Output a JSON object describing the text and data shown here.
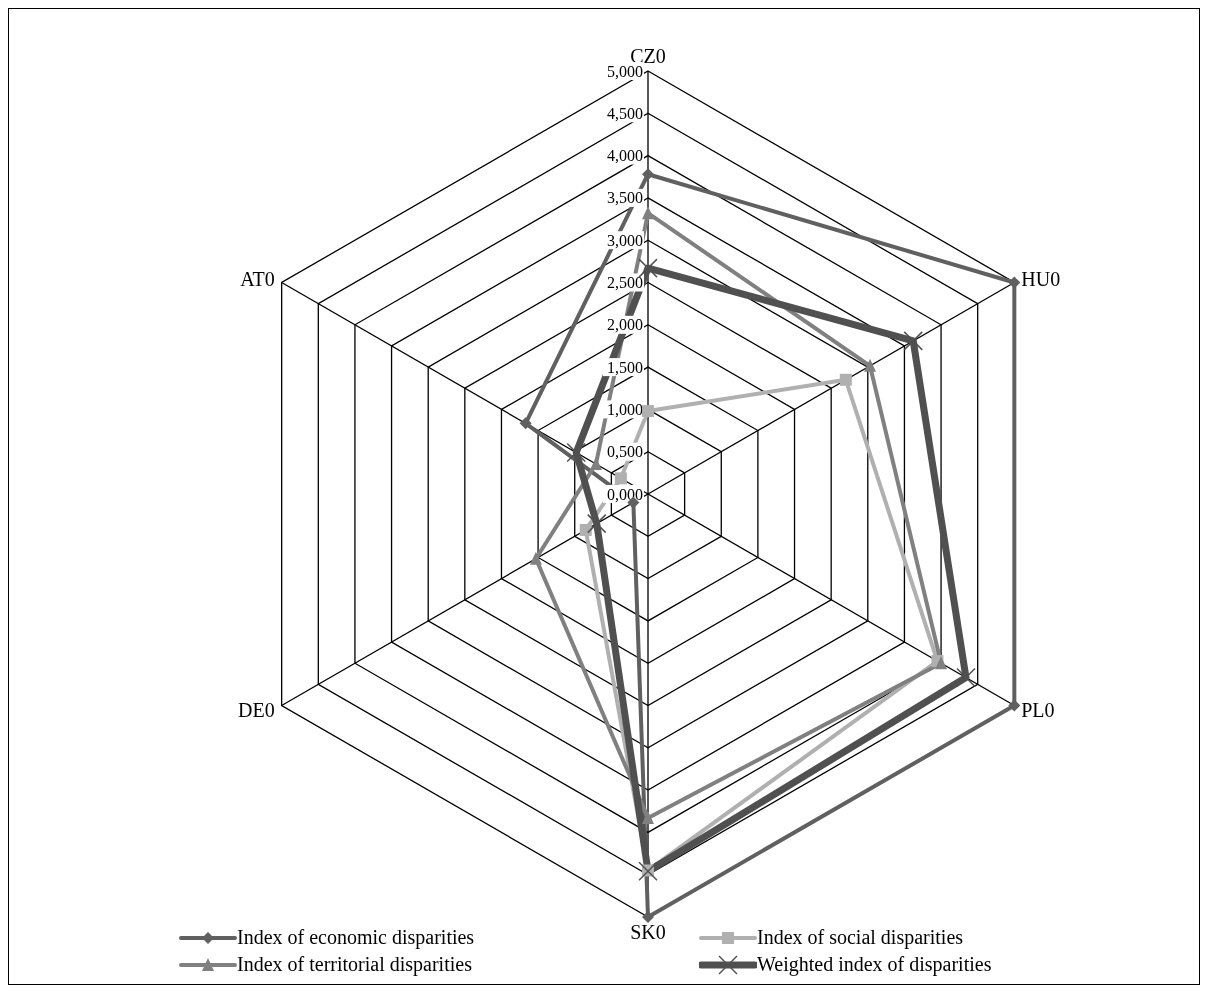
{
  "chart_data": {
    "type": "radar",
    "categories": [
      "CZ0",
      "HU0",
      "PL0",
      "SK0",
      "DE0",
      "AT0"
    ],
    "ylim": [
      0,
      5
    ],
    "yticks": [
      {
        "value": 0,
        "label": "0,000"
      },
      {
        "value": 0.5,
        "label": "0,500"
      },
      {
        "value": 1,
        "label": "1,000"
      },
      {
        "value": 1.5,
        "label": "1,500"
      },
      {
        "value": 2,
        "label": "2,000"
      },
      {
        "value": 2.5,
        "label": "2,500"
      },
      {
        "value": 3,
        "label": "3,000"
      },
      {
        "value": 3.5,
        "label": "3,500"
      },
      {
        "value": 4,
        "label": "4,000"
      },
      {
        "value": 4.5,
        "label": "4,500"
      },
      {
        "value": 5,
        "label": "5,000"
      }
    ],
    "grid": true,
    "legend": "bottom",
    "series": [
      {
        "name": "Index of economic disparities",
        "color": "#606060",
        "marker": "diamond",
        "values": [
          3.78,
          5.0,
          5.0,
          5.0,
          0.2,
          1.67
        ]
      },
      {
        "name": "Index of social disparities",
        "color": "#b0b0b0",
        "marker": "square",
        "values": [
          0.98,
          2.7,
          3.95,
          4.45,
          0.85,
          0.37
        ]
      },
      {
        "name": "Index of territorial disparities",
        "color": "#808080",
        "marker": "triangle",
        "values": [
          3.32,
          3.03,
          4.0,
          3.83,
          1.53,
          0.71
        ]
      },
      {
        "name": "Weighted index of disparities",
        "color": "#505050",
        "marker": "cross",
        "values": [
          2.67,
          3.62,
          4.34,
          4.46,
          0.7,
          0.98
        ]
      }
    ]
  }
}
